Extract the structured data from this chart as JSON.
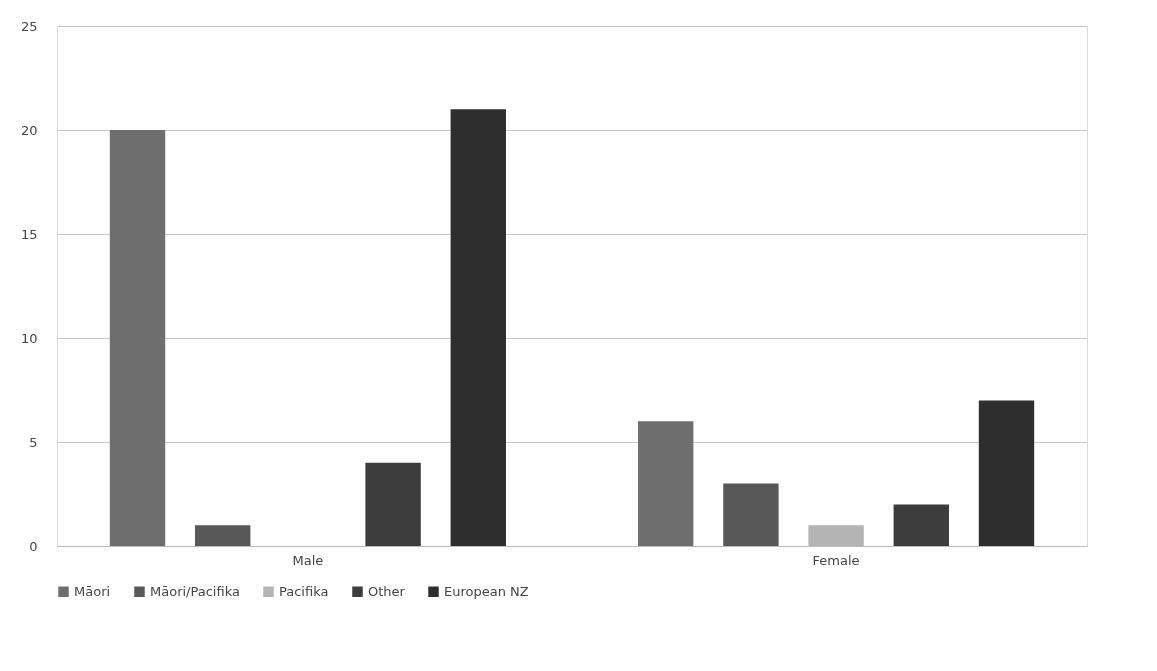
{
  "chart_data": {
    "type": "bar",
    "categories": [
      "Male",
      "Female"
    ],
    "series": [
      {
        "name": "Māori",
        "color": "#6e6e6e",
        "values": [
          20,
          6
        ]
      },
      {
        "name": "Māori/Pacifika",
        "color": "#585858",
        "values": [
          1,
          3
        ]
      },
      {
        "name": "Pacifika",
        "color": "#b4b4b4",
        "values": [
          0,
          1
        ]
      },
      {
        "name": "Other",
        "color": "#3c3c3c",
        "values": [
          4,
          2
        ]
      },
      {
        "name": "European NZ",
        "color": "#2e2e2e",
        "values": [
          21,
          7
        ]
      }
    ],
    "ylim": [
      0,
      25
    ],
    "yticks": [
      0,
      5,
      10,
      15,
      20,
      25
    ],
    "grid": "y",
    "legend": "bottom"
  }
}
